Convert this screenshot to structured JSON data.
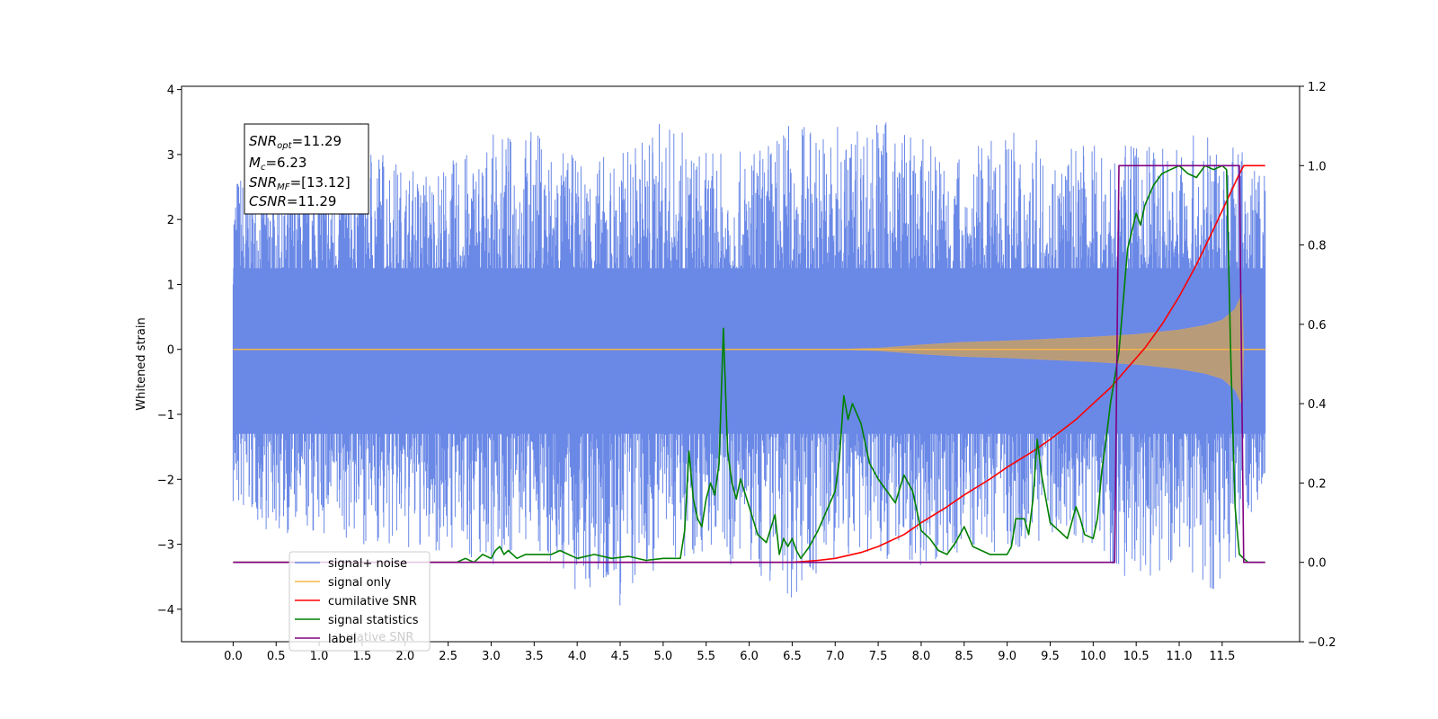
{
  "chart_data": {
    "type": "line",
    "title": "",
    "xlabel": "",
    "ylabel": "Whitened strain",
    "xlim": [
      -0.6,
      12.4
    ],
    "ylim": [
      -4.5,
      4.05
    ],
    "y2lim": [
      -0.2,
      1.2
    ],
    "x_ticks": [
      0.0,
      0.5,
      1.0,
      1.5,
      2.0,
      2.5,
      3.0,
      3.5,
      4.0,
      4.5,
      5.0,
      5.5,
      6.0,
      6.5,
      7.0,
      7.5,
      8.0,
      8.5,
      9.0,
      9.5,
      10.0,
      10.5,
      11.0,
      11.5
    ],
    "x_tick_labels": [
      "0.0",
      "0.5",
      "1.0",
      "1.5",
      "2.0",
      "2.5",
      "3.0",
      "3.5",
      "4.0",
      "4.5",
      "5.0",
      "5.5",
      "6.0",
      "6.5",
      "7.0",
      "7.5",
      "8.0",
      "8.5",
      "9.0",
      "9.5",
      "10.0",
      "10.5",
      "11.0",
      "11.5"
    ],
    "y_ticks": [
      4,
      3,
      2,
      1,
      0,
      -1,
      -2,
      -3,
      -4
    ],
    "y_tick_labels": [
      "4",
      "3",
      "2",
      "1",
      "0",
      "−1",
      "−2",
      "−3",
      "−4"
    ],
    "y2_ticks": [
      1.2,
      1.0,
      0.8,
      0.6,
      0.4,
      0.2,
      0.0,
      -0.2
    ],
    "y2_tick_labels": [
      "1.2",
      "1.0",
      "0.8",
      "0.6",
      "0.4",
      "0.2",
      "0.0",
      "−0.2"
    ],
    "grid": false,
    "legend_position": "lower-left",
    "annotation": {
      "lines": [
        {
          "base": "SNR",
          "sub": "opt",
          "rest": "=11.29"
        },
        {
          "base": "M",
          "sub": "c",
          "rest": "=6.23"
        },
        {
          "base": "SNR",
          "sub": "MF",
          "rest": "=[13.12]"
        },
        {
          "base": "CSNR",
          "sub": "",
          "rest": "=11.29"
        }
      ]
    },
    "noise_envelope": {
      "x": [
        0.0,
        0.5,
        1.0,
        1.5,
        2.0,
        2.5,
        3.0,
        3.5,
        4.0,
        4.5,
        5.0,
        5.5,
        6.0,
        6.5,
        7.0,
        7.5,
        8.0,
        8.5,
        9.0,
        9.5,
        10.0,
        10.5,
        11.0,
        11.5,
        12.0
      ],
      "upper": [
        2.85,
        2.8,
        3.0,
        3.6,
        2.8,
        2.9,
        3.3,
        3.45,
        2.95,
        3.05,
        3.6,
        3.05,
        3.05,
        3.6,
        3.45,
        3.65,
        3.25,
        3.0,
        3.4,
        3.15,
        3.2,
        3.15,
        3.35,
        3.25,
        2.9
      ],
      "lower": [
        -2.6,
        -2.85,
        -2.95,
        -3.0,
        -3.2,
        -3.15,
        -3.35,
        -3.05,
        -3.85,
        -4.1,
        -3.25,
        -3.15,
        -3.5,
        -3.85,
        -3.35,
        -3.2,
        -3.35,
        -3.2,
        -3.1,
        -2.9,
        -3.05,
        -3.65,
        -3.4,
        -3.85,
        -2.05
      ]
    },
    "series": [
      {
        "name": "signal+ noise",
        "color": "#6a88e6",
        "kind": "noise",
        "x": [
          0.0,
          12.0
        ],
        "values": [
          0.0,
          0.0
        ]
      },
      {
        "name": "signal only",
        "color": "#f5b54a",
        "kind": "chirp",
        "x": [
          0.0,
          7.0,
          7.5,
          8.0,
          8.5,
          9.0,
          9.5,
          10.0,
          10.5,
          11.0,
          11.3,
          11.5,
          11.65,
          11.73,
          11.75,
          12.0
        ],
        "values": [
          0.0,
          0.0,
          0.02,
          0.07,
          0.11,
          0.13,
          0.16,
          0.19,
          0.23,
          0.3,
          0.37,
          0.45,
          0.62,
          0.85,
          0.0,
          0.0
        ]
      },
      {
        "name": "cumilative SNR",
        "color": "#ff0000",
        "axis": "right",
        "x": [
          0.0,
          6.5,
          6.8,
          7.0,
          7.3,
          7.5,
          7.8,
          8.0,
          8.3,
          8.5,
          8.8,
          9.0,
          9.3,
          9.5,
          9.8,
          10.0,
          10.2,
          10.4,
          10.6,
          10.8,
          11.0,
          11.2,
          11.4,
          11.55,
          11.68,
          11.75,
          12.0
        ],
        "values": [
          0.0,
          0.0,
          0.005,
          0.01,
          0.025,
          0.04,
          0.07,
          0.1,
          0.14,
          0.17,
          0.21,
          0.24,
          0.28,
          0.31,
          0.36,
          0.4,
          0.44,
          0.49,
          0.54,
          0.6,
          0.67,
          0.75,
          0.84,
          0.91,
          0.97,
          1.0,
          1.0
        ]
      },
      {
        "name": "signal statistics",
        "color": "#008000",
        "axis": "right",
        "x": [
          0.0,
          2.6,
          2.7,
          2.8,
          2.9,
          3.0,
          3.05,
          3.1,
          3.15,
          3.2,
          3.3,
          3.4,
          3.5,
          3.6,
          3.7,
          3.8,
          4.0,
          4.2,
          4.4,
          4.6,
          4.8,
          5.0,
          5.2,
          5.25,
          5.3,
          5.35,
          5.4,
          5.45,
          5.5,
          5.55,
          5.6,
          5.65,
          5.7,
          5.75,
          5.8,
          5.85,
          5.9,
          6.0,
          6.1,
          6.2,
          6.3,
          6.35,
          6.4,
          6.45,
          6.5,
          6.55,
          6.6,
          6.7,
          6.8,
          6.9,
          7.0,
          7.05,
          7.1,
          7.15,
          7.2,
          7.3,
          7.4,
          7.5,
          7.6,
          7.7,
          7.8,
          7.9,
          8.0,
          8.1,
          8.2,
          8.3,
          8.4,
          8.5,
          8.6,
          8.8,
          9.0,
          9.05,
          9.1,
          9.2,
          9.25,
          9.3,
          9.35,
          9.4,
          9.5,
          9.6,
          9.7,
          9.8,
          9.85,
          9.9,
          10.0,
          10.05,
          10.1,
          10.15,
          10.2,
          10.3,
          10.4,
          10.5,
          10.55,
          10.6,
          10.7,
          10.8,
          10.9,
          11.0,
          11.1,
          11.2,
          11.3,
          11.4,
          11.5,
          11.55,
          11.6,
          11.65,
          11.7,
          11.8,
          11.9,
          12.0
        ],
        "values": [
          0.0,
          0.0,
          0.01,
          0.0,
          0.02,
          0.01,
          0.03,
          0.04,
          0.02,
          0.03,
          0.01,
          0.02,
          0.02,
          0.02,
          0.02,
          0.03,
          0.01,
          0.02,
          0.01,
          0.015,
          0.005,
          0.01,
          0.01,
          0.08,
          0.28,
          0.16,
          0.11,
          0.09,
          0.16,
          0.2,
          0.17,
          0.25,
          0.59,
          0.28,
          0.2,
          0.16,
          0.21,
          0.14,
          0.07,
          0.05,
          0.12,
          0.02,
          0.06,
          0.04,
          0.06,
          0.03,
          0.01,
          0.04,
          0.08,
          0.13,
          0.18,
          0.26,
          0.42,
          0.36,
          0.4,
          0.35,
          0.25,
          0.21,
          0.18,
          0.15,
          0.22,
          0.18,
          0.08,
          0.06,
          0.03,
          0.02,
          0.05,
          0.09,
          0.04,
          0.02,
          0.02,
          0.04,
          0.11,
          0.11,
          0.07,
          0.16,
          0.31,
          0.22,
          0.1,
          0.08,
          0.06,
          0.14,
          0.11,
          0.07,
          0.06,
          0.11,
          0.23,
          0.31,
          0.4,
          0.53,
          0.79,
          0.88,
          0.85,
          0.9,
          0.95,
          0.98,
          0.99,
          1.0,
          0.98,
          0.97,
          1.0,
          0.99,
          1.0,
          0.99,
          0.52,
          0.14,
          0.02,
          0.0,
          0.0,
          0.0
        ]
      },
      {
        "name": "label",
        "color": "#800080",
        "axis": "right",
        "x": [
          0.0,
          10.25,
          10.3,
          11.7,
          11.75,
          12.0
        ],
        "values": [
          0.0,
          0.0,
          1.0,
          1.0,
          0.0,
          0.0
        ]
      }
    ],
    "legend_entries": [
      "signal+ noise",
      "signal only",
      "cumilative SNR",
      "signal statistics",
      "label"
    ],
    "legend_ghost_text": "ulative SNR"
  }
}
